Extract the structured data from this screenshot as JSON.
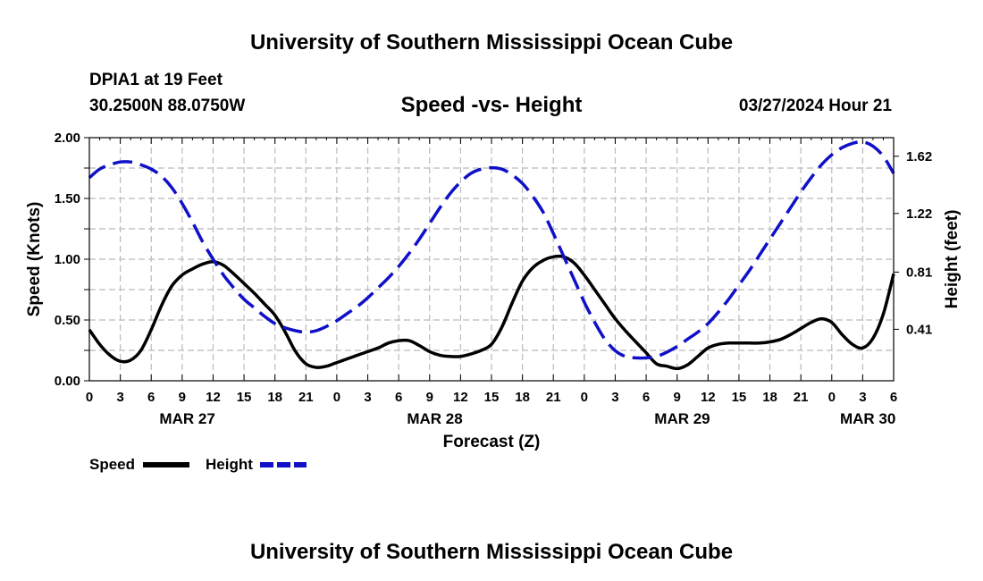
{
  "header": {
    "title": "University of Southern Mississippi Ocean Cube",
    "station": "DPIA1 at 19 Feet",
    "coords": "30.2500N  88.0750W",
    "chart_title": "Speed -vs- Height",
    "timestamp": "03/27/2024 Hour 21"
  },
  "footer": {
    "title": "University of Southern Mississippi Ocean Cube"
  },
  "legend": {
    "speed_label": "Speed",
    "height_label": "Height"
  },
  "colors": {
    "speed": "#000000",
    "height": "#1010c8",
    "grid": "#bbbbbb"
  },
  "chart_data": {
    "type": "line",
    "title": "Speed -vs- Height",
    "xlabel": "Forecast (Z)",
    "ylabel": "Speed (Knots)",
    "y2label": "Height (feet)",
    "xlim": [
      0,
      78
    ],
    "ylim": [
      0,
      2.0
    ],
    "y2lim": [
      0.05,
      1.75
    ],
    "x_ticks": [
      0,
      3,
      6,
      9,
      12,
      15,
      18,
      21,
      24,
      27,
      30,
      33,
      36,
      39,
      42,
      45,
      48,
      51,
      54,
      57,
      60,
      63,
      66,
      69,
      72,
      75,
      78
    ],
    "x_tick_labels": [
      "0",
      "3",
      "6",
      "9",
      "12",
      "15",
      "18",
      "21",
      "0",
      "3",
      "6",
      "9",
      "12",
      "15",
      "18",
      "21",
      "0",
      "3",
      "6",
      "9",
      "12",
      "15",
      "18",
      "21",
      "0",
      "3",
      "6"
    ],
    "date_labels": [
      {
        "x": 9.5,
        "label": "MAR 27"
      },
      {
        "x": 33.5,
        "label": "MAR 28"
      },
      {
        "x": 57.5,
        "label": "MAR 29"
      },
      {
        "x": 75.5,
        "label": "MAR 30"
      }
    ],
    "y_ticks": [
      0,
      0.25,
      0.5,
      0.75,
      1.0,
      1.25,
      1.5,
      1.75,
      2.0
    ],
    "y_tick_labels": [
      "0.00",
      "",
      "0.50",
      "",
      "1.00",
      "",
      "1.50",
      "",
      "2.00"
    ],
    "y2_ticks": [
      0.41,
      0.81,
      1.22,
      1.62
    ],
    "y2_tick_labels": [
      "0.41",
      "0.81",
      "1.22",
      "1.62"
    ],
    "series": [
      {
        "name": "Speed",
        "axis": "left",
        "style": "solid",
        "x": [
          0,
          1,
          2,
          3,
          4,
          5,
          6,
          7,
          8,
          9,
          10,
          11,
          12,
          13,
          14,
          15,
          16,
          17,
          18,
          19,
          20,
          21,
          22,
          23,
          24,
          25,
          26,
          27,
          28,
          29,
          30,
          31,
          32,
          33,
          34,
          35,
          36,
          37,
          38,
          39,
          40,
          41,
          42,
          43,
          44,
          45,
          46,
          47,
          48,
          49,
          50,
          51,
          52,
          53,
          54,
          55,
          56,
          57,
          58,
          59,
          60,
          61,
          62,
          63,
          64,
          65,
          66,
          67,
          68,
          69,
          70,
          71,
          72,
          73,
          74,
          75,
          76,
          77,
          78
        ],
        "values": [
          0.42,
          0.3,
          0.21,
          0.16,
          0.17,
          0.25,
          0.42,
          0.62,
          0.78,
          0.87,
          0.92,
          0.96,
          0.98,
          0.95,
          0.88,
          0.8,
          0.72,
          0.63,
          0.54,
          0.4,
          0.24,
          0.14,
          0.11,
          0.12,
          0.15,
          0.18,
          0.21,
          0.24,
          0.27,
          0.31,
          0.33,
          0.33,
          0.29,
          0.24,
          0.21,
          0.2,
          0.2,
          0.22,
          0.25,
          0.3,
          0.44,
          0.64,
          0.82,
          0.93,
          0.99,
          1.02,
          1.02,
          0.97,
          0.87,
          0.75,
          0.63,
          0.51,
          0.41,
          0.32,
          0.23,
          0.14,
          0.12,
          0.1,
          0.13,
          0.2,
          0.27,
          0.3,
          0.31,
          0.31,
          0.31,
          0.31,
          0.32,
          0.34,
          0.38,
          0.43,
          0.48,
          0.51,
          0.48,
          0.38,
          0.3,
          0.27,
          0.35,
          0.55,
          0.88
        ]
      },
      {
        "name": "Height",
        "axis": "right",
        "style": "dashed",
        "x": [
          0,
          1,
          2,
          3,
          4,
          5,
          6,
          7,
          8,
          9,
          10,
          11,
          12,
          13,
          14,
          15,
          16,
          17,
          18,
          19,
          20,
          21,
          22,
          23,
          24,
          25,
          26,
          27,
          28,
          29,
          30,
          31,
          32,
          33,
          34,
          35,
          36,
          37,
          38,
          39,
          40,
          41,
          42,
          43,
          44,
          45,
          46,
          47,
          48,
          49,
          50,
          51,
          52,
          53,
          54,
          55,
          56,
          57,
          58,
          59,
          60,
          61,
          62,
          63,
          64,
          65,
          66,
          67,
          68,
          69,
          70,
          71,
          72,
          73,
          74,
          75,
          76,
          77,
          78
        ],
        "values": [
          1.47,
          1.53,
          1.56,
          1.58,
          1.58,
          1.56,
          1.53,
          1.48,
          1.4,
          1.29,
          1.16,
          1.02,
          0.9,
          0.79,
          0.7,
          0.62,
          0.56,
          0.5,
          0.45,
          0.42,
          0.4,
          0.39,
          0.4,
          0.43,
          0.47,
          0.52,
          0.57,
          0.63,
          0.7,
          0.77,
          0.85,
          0.94,
          1.04,
          1.15,
          1.26,
          1.36,
          1.44,
          1.5,
          1.53,
          1.54,
          1.53,
          1.49,
          1.43,
          1.34,
          1.23,
          1.08,
          0.92,
          0.76,
          0.6,
          0.46,
          0.34,
          0.26,
          0.22,
          0.21,
          0.21,
          0.22,
          0.25,
          0.29,
          0.34,
          0.39,
          0.45,
          0.53,
          0.62,
          0.72,
          0.82,
          0.93,
          1.04,
          1.15,
          1.26,
          1.37,
          1.47,
          1.56,
          1.63,
          1.68,
          1.71,
          1.72,
          1.69,
          1.62,
          1.5
        ]
      }
    ]
  }
}
